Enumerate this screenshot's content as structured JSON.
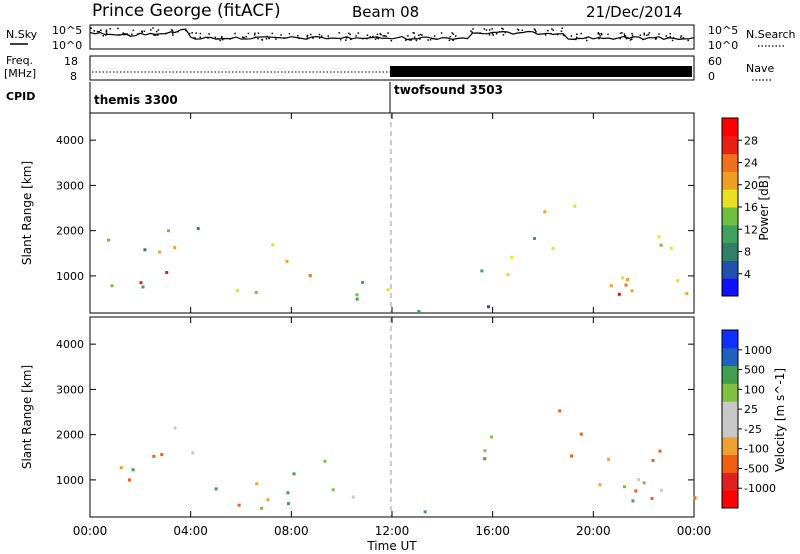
{
  "header": {
    "station": "Prince George (fitACF)",
    "beam": "Beam 08",
    "date": "21/Dec/2014"
  },
  "panels": {
    "nsky_label": "N.Sky",
    "nsearch_label": "N.Search",
    "freq_label": "Freq.",
    "freq_unit": "[MHz]",
    "nave_label": "Nave",
    "cpid_label": "CPID",
    "sky_ticks": [
      "10^5",
      "10^0"
    ],
    "search_ticks": [
      "10^5",
      "10^0"
    ],
    "freq_ticks": [
      "18",
      "8"
    ],
    "nave_ticks": [
      "60",
      "0"
    ]
  },
  "cpid": [
    {
      "name": "themis 3300",
      "start": 0
    },
    {
      "name": "twofsound 3503",
      "start": 12
    }
  ],
  "colors": {
    "power": [
      "#1010ff",
      "#2050b0",
      "#30806a",
      "#40a060",
      "#70c040",
      "#e8e020",
      "#f0a020",
      "#f07020",
      "#e82010",
      "#ff0000"
    ],
    "velocity": [
      "#ff0000",
      "#e02020",
      "#f06010",
      "#f0a030",
      "#c8c8c8",
      "#c8c8c8",
      "#80c040",
      "#40a050",
      "#2060c0",
      "#1030ff"
    ],
    "ground": "#c0c0c0"
  },
  "chart_data": [
    {
      "type": "heatmap",
      "name": "power",
      "ylabel": "Slant Range [km]",
      "xlabel": "Time UT",
      "x_ticks": [
        "00:00",
        "04:00",
        "08:00",
        "12:00",
        "16:00",
        "20:00",
        "00:00"
      ],
      "xlim": [
        0,
        24
      ],
      "y_ticks": [
        1000,
        2000,
        3000,
        4000
      ],
      "ylim": [
        180,
        4600
      ],
      "colorbar_label": "Power [dB]",
      "colorbar_ticks": [
        "28",
        "24",
        "20",
        "16",
        "12",
        "8",
        "4"
      ],
      "colorbar_range": [
        0,
        30
      ],
      "regions": [
        {
          "t": [
            0.0,
            3.0
          ],
          "r": [
            700,
            1300
          ],
          "v": 24
        },
        {
          "t": [
            0.3,
            2.5
          ],
          "r": [
            500,
            2000
          ],
          "v": 10
        },
        {
          "t": [
            2.0,
            3.5
          ],
          "r": [
            900,
            1800
          ],
          "v": 22
        },
        {
          "t": [
            2.5,
            4.5
          ],
          "r": [
            1700,
            2600
          ],
          "v": 8
        },
        {
          "t": [
            4.0,
            12.0
          ],
          "r": [
            400,
            1100
          ],
          "v": 14
        },
        {
          "t": [
            6.0,
            9.0
          ],
          "r": [
            1300,
            1900
          ],
          "v": 18
        },
        {
          "t": [
            8.5,
            9.0
          ],
          "r": [
            600,
            1700
          ],
          "v": 24
        },
        {
          "t": [
            12.0,
            16.0
          ],
          "r": [
            200,
            550
          ],
          "v": 8
        },
        {
          "t": [
            15.5,
            18.0
          ],
          "r": [
            800,
            2000
          ],
          "v": 12
        },
        {
          "t": [
            16.5,
            24.0
          ],
          "r": [
            500,
            1200
          ],
          "v": 20
        },
        {
          "t": [
            17.0,
            24.0
          ],
          "r": [
            1300,
            1900
          ],
          "v": 16
        },
        {
          "t": [
            20.0,
            24.0
          ],
          "r": [
            400,
            900
          ],
          "v": 26
        },
        {
          "t": [
            18.0,
            19.5
          ],
          "r": [
            2000,
            3400
          ],
          "v": 16
        }
      ]
    },
    {
      "type": "heatmap",
      "name": "velocity",
      "ylabel": "Slant Range [km]",
      "xlabel": "Time UT",
      "x_ticks": [
        "00:00",
        "04:00",
        "08:00",
        "12:00",
        "16:00",
        "20:00",
        "00:00"
      ],
      "xlim": [
        0,
        24
      ],
      "y_ticks": [
        1000,
        2000,
        3000,
        4000
      ],
      "ylim": [
        180,
        4600
      ],
      "colorbar_label": "Velocity [m s^-1]",
      "colorbar_ticks": [
        "1000",
        "500",
        "100",
        "25",
        "-25",
        "-100",
        "-500",
        "-1000"
      ],
      "colorbar_range": [
        -1000,
        1000
      ],
      "regions": [
        {
          "t": [
            0.0,
            2.0
          ],
          "r": [
            700,
            1400
          ],
          "v": 0
        },
        {
          "t": [
            1.5,
            3.5
          ],
          "r": [
            700,
            2000
          ],
          "v": -300
        },
        {
          "t": [
            3.0,
            4.5
          ],
          "r": [
            1500,
            2500
          ],
          "v": 0
        },
        {
          "t": [
            4.0,
            12.0
          ],
          "r": [
            400,
            1200
          ],
          "v": 0
        },
        {
          "t": [
            4.5,
            8.0
          ],
          "r": [
            450,
            700
          ],
          "v": -300
        },
        {
          "t": [
            7.5,
            10.0
          ],
          "r": [
            600,
            1800
          ],
          "v": 100
        },
        {
          "t": [
            12.0,
            16.0
          ],
          "r": [
            300,
            600
          ],
          "v": 0
        },
        {
          "t": [
            15.0,
            17.5
          ],
          "r": [
            800,
            2000
          ],
          "v": 150
        },
        {
          "t": [
            16.5,
            24.0
          ],
          "r": [
            600,
            1300
          ],
          "v": 0
        },
        {
          "t": [
            17.0,
            23.0
          ],
          "r": [
            1300,
            1900
          ],
          "v": -200
        },
        {
          "t": [
            18.0,
            19.5
          ],
          "r": [
            2000,
            3400
          ],
          "v": -400
        },
        {
          "t": [
            20.0,
            24.0
          ],
          "r": [
            500,
            900
          ],
          "v": 0
        },
        {
          "t": [
            22.0,
            24.0
          ],
          "r": [
            400,
            700
          ],
          "v": -150
        }
      ]
    }
  ]
}
